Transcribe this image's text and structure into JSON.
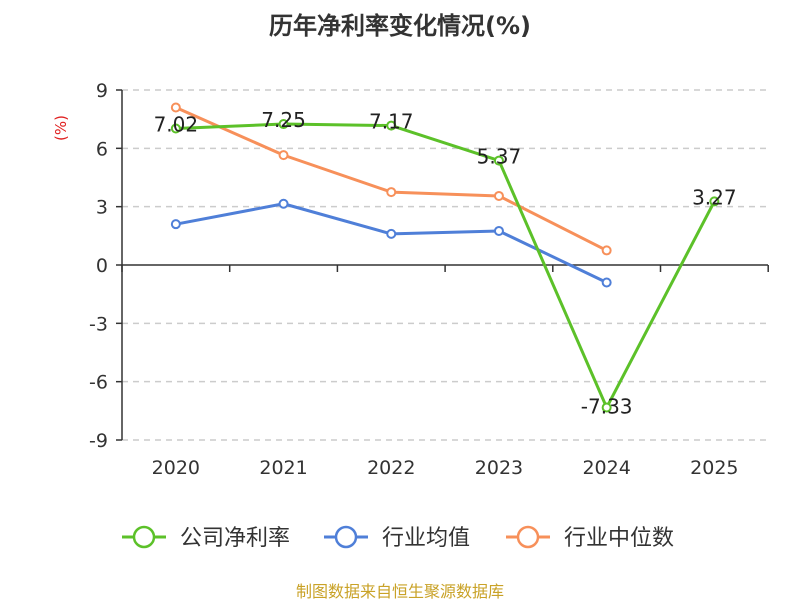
{
  "title": "历年净利率变化情况(%)",
  "source": "制图数据来自恒生聚源数据库",
  "colors": {
    "grid": "#cccccc",
    "axis": "#333333",
    "unit": "#e02020"
  },
  "chart_data": {
    "type": "line",
    "ylabel": "(%)",
    "ylim": [
      -9,
      9
    ],
    "yticks": [
      9,
      6,
      3,
      0,
      -3,
      -6,
      -9
    ],
    "grid": true,
    "legend_position": "bottom",
    "categories": [
      "2020",
      "2021",
      "2022",
      "2023",
      "2024",
      "2025"
    ],
    "series": [
      {
        "name": "公司净利率",
        "color": "#5cc129",
        "values": [
          7.02,
          7.25,
          7.17,
          5.37,
          -7.33,
          3.27
        ],
        "data_labels": [
          "7.02",
          "7.25",
          "7.17",
          "5.37",
          "-7.33",
          "3.27"
        ]
      },
      {
        "name": "行业均值",
        "color": "#4f7fd8",
        "values": [
          2.1,
          3.15,
          1.6,
          1.75,
          -0.9,
          null
        ]
      },
      {
        "name": "行业中位数",
        "color": "#f7905a",
        "values": [
          8.1,
          5.65,
          3.75,
          3.55,
          0.75,
          null
        ]
      }
    ]
  }
}
